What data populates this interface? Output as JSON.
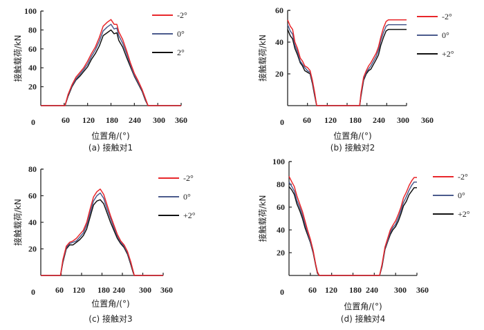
{
  "figure": {
    "series_names": [
      "-2°",
      "0°",
      "2°"
    ],
    "colors": {
      "neg2": "#e8262a",
      "zero": "#4a5a8c",
      "pos2": "#111111",
      "axis": "#222222"
    }
  },
  "chart_data": [
    {
      "id": "a",
      "type": "line",
      "title": "(a) 接触对1",
      "xlabel": "位置角/(°)",
      "ylabel": "接触载荷/kN",
      "xlim": [
        0,
        360
      ],
      "ylim": [
        0,
        100
      ],
      "xticks": [
        0,
        60,
        120,
        180,
        240,
        300,
        360
      ],
      "yticks": [
        20,
        40,
        60,
        80,
        100
      ],
      "grid": false,
      "legend_position": "top-right",
      "x": [
        0,
        60,
        62,
        70,
        80,
        90,
        100,
        110,
        120,
        130,
        140,
        150,
        160,
        170,
        180,
        188,
        195,
        200,
        210,
        220,
        230,
        240,
        250,
        260,
        268,
        275,
        360
      ],
      "series": [
        {
          "name": "-2°",
          "values": [
            0,
            0,
            0,
            12,
            22,
            30,
            35,
            40,
            47,
            55,
            62,
            72,
            84,
            88,
            91,
            86,
            86,
            78,
            70,
            58,
            45,
            34,
            26,
            17,
            8,
            0,
            0
          ]
        },
        {
          "name": "0°",
          "values": [
            0,
            0,
            0,
            11,
            21,
            28,
            33,
            38,
            44,
            52,
            59,
            68,
            79,
            83,
            86,
            81,
            82,
            74,
            66,
            55,
            43,
            32,
            24,
            16,
            7,
            0,
            0
          ]
        },
        {
          "name": "2°",
          "values": [
            0,
            0,
            0,
            10,
            20,
            27,
            31,
            36,
            41,
            49,
            55,
            63,
            74,
            77,
            80,
            76,
            77,
            69,
            62,
            51,
            41,
            31,
            23,
            15,
            6,
            0,
            0
          ]
        }
      ]
    },
    {
      "id": "b",
      "type": "line",
      "title": "(b) 接触对2",
      "xlabel": "位置角/(°)",
      "ylabel": "接触载荷/kN",
      "xlim": [
        0,
        360
      ],
      "ylim": [
        0,
        60
      ],
      "xticks": [
        0,
        60,
        120,
        180,
        240,
        300,
        360
      ],
      "yticks": [
        20,
        40,
        60
      ],
      "grid": false,
      "legend_position": "top-right",
      "x": [
        0,
        8,
        15,
        22,
        30,
        38,
        45,
        52,
        60,
        68,
        75,
        82,
        88,
        90,
        215,
        218,
        222,
        230,
        238,
        245,
        252,
        260,
        268,
        275,
        282,
        290,
        298,
        305,
        310,
        360
      ],
      "series": [
        {
          "name": "-2°",
          "values": [
            54,
            50,
            48,
            40,
            36,
            30,
            28,
            25,
            24,
            22,
            16,
            8,
            0,
            0,
            0,
            0,
            8,
            18,
            22,
            25,
            27,
            30,
            33,
            37,
            43,
            49,
            53,
            54,
            54,
            54
          ]
        },
        {
          "name": "0°",
          "values": [
            51,
            47,
            45,
            38,
            34,
            28,
            26,
            24,
            22,
            21,
            15,
            7,
            0,
            0,
            0,
            0,
            7,
            17,
            21,
            23,
            25,
            28,
            31,
            35,
            41,
            46,
            50,
            51,
            51,
            51
          ]
        },
        {
          "name": "+2°",
          "values": [
            48,
            44,
            42,
            36,
            32,
            27,
            25,
            22,
            21,
            20,
            14,
            6,
            0,
            0,
            0,
            0,
            6,
            16,
            20,
            22,
            23,
            26,
            29,
            32,
            38,
            43,
            47,
            48,
            48,
            48
          ]
        }
      ]
    },
    {
      "id": "c",
      "type": "line",
      "title": "(c) 接触对3",
      "xlabel": "位置角/(°)",
      "ylabel": "接触载荷/kN",
      "xlim": [
        0,
        360
      ],
      "ylim": [
        0,
        80
      ],
      "xticks": [
        0,
        60,
        120,
        180,
        240,
        300,
        360
      ],
      "yticks": [
        20,
        40,
        60,
        80
      ],
      "grid": false,
      "legend_position": "top-right",
      "x": [
        0,
        55,
        58,
        65,
        75,
        85,
        95,
        105,
        115,
        125,
        135,
        145,
        155,
        165,
        175,
        185,
        195,
        205,
        215,
        225,
        235,
        245,
        255,
        265,
        272,
        275,
        360
      ],
      "series": [
        {
          "name": "-2°",
          "values": [
            0,
            0,
            0,
            12,
            22,
            25,
            26,
            28,
            31,
            34,
            40,
            50,
            59,
            63,
            65,
            61,
            53,
            45,
            38,
            31,
            26,
            23,
            18,
            10,
            3,
            0,
            0
          ]
        },
        {
          "name": "0°",
          "values": [
            0,
            0,
            0,
            11,
            21,
            24,
            25,
            26,
            29,
            32,
            38,
            47,
            56,
            60,
            62,
            58,
            50,
            43,
            36,
            30,
            25,
            22,
            17,
            9,
            3,
            0,
            0
          ]
        },
        {
          "name": "+2°",
          "values": [
            0,
            0,
            0,
            10,
            20,
            23,
            23,
            25,
            27,
            30,
            35,
            44,
            53,
            56,
            57,
            54,
            47,
            40,
            34,
            28,
            24,
            21,
            16,
            8,
            2,
            0,
            0
          ]
        }
      ]
    },
    {
      "id": "d",
      "type": "line",
      "title": "(d) 接触对4",
      "xlabel": "位置角/(°)",
      "ylabel": "接触载荷/kN",
      "xlim": [
        0,
        360
      ],
      "ylim": [
        0,
        100
      ],
      "xticks": [
        0,
        60,
        120,
        180,
        240,
        300,
        360
      ],
      "yticks": [
        20,
        40,
        60,
        80,
        100
      ],
      "grid": false,
      "legend_position": "top-right",
      "x": [
        0,
        8,
        15,
        22,
        30,
        38,
        45,
        52,
        60,
        68,
        75,
        80,
        85,
        250,
        255,
        262,
        270,
        278,
        285,
        292,
        300,
        308,
        315,
        322,
        330,
        338,
        345,
        352,
        360
      ],
      "series": [
        {
          "name": "-2°",
          "values": [
            87,
            82,
            78,
            70,
            63,
            56,
            48,
            40,
            32,
            22,
            10,
            3,
            0,
            0,
            0,
            10,
            25,
            33,
            40,
            44,
            48,
            54,
            60,
            68,
            73,
            79,
            83,
            86,
            86
          ]
        },
        {
          "name": "0°",
          "values": [
            82,
            78,
            74,
            66,
            60,
            53,
            45,
            38,
            30,
            21,
            10,
            3,
            0,
            0,
            0,
            9,
            24,
            31,
            38,
            42,
            45,
            51,
            57,
            64,
            69,
            75,
            79,
            82,
            82
          ]
        },
        {
          "name": "+2°",
          "values": [
            78,
            75,
            71,
            63,
            57,
            50,
            42,
            36,
            29,
            20,
            9,
            2,
            0,
            0,
            0,
            8,
            23,
            30,
            36,
            40,
            43,
            48,
            54,
            61,
            65,
            71,
            74,
            77,
            77
          ]
        }
      ]
    }
  ]
}
